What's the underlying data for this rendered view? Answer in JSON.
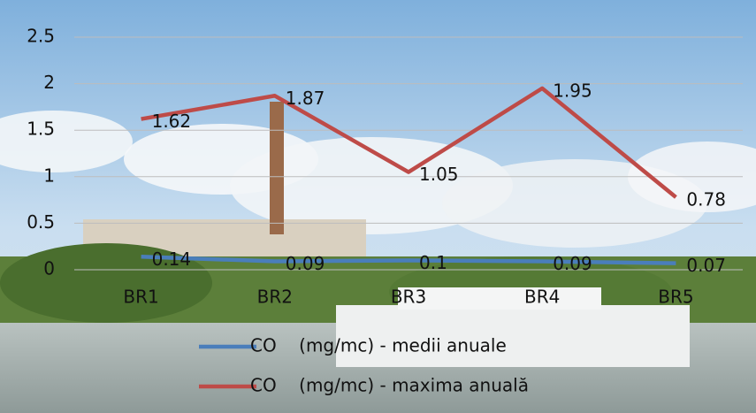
{
  "chart_data": {
    "type": "line",
    "categories": [
      "BR1",
      "BR2",
      "BR3",
      "BR4",
      "BR5"
    ],
    "series": [
      {
        "name": "CO    (mg/mc) - medii anuale",
        "color": "#4a7ebb",
        "values": [
          0.14,
          0.09,
          0.1,
          0.09,
          0.07
        ]
      },
      {
        "name": "CO    (mg/mc) - maxima anuală",
        "color": "#be4b48",
        "values": [
          1.62,
          1.87,
          1.05,
          1.95,
          0.78
        ]
      }
    ],
    "ylim": [
      0,
      2.5
    ],
    "yticks": [
      0,
      0.5,
      1,
      1.5,
      2,
      2.5
    ],
    "grid": true,
    "legend": "bottom"
  }
}
